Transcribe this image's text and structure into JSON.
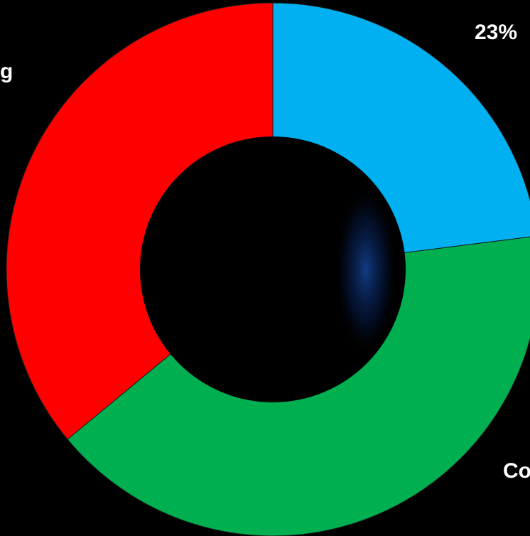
{
  "chart_data": {
    "type": "pie",
    "donut": true,
    "slices": [
      {
        "value": 23,
        "color": "#00b0f0"
      },
      {
        "value": 41,
        "color": "#00b050"
      },
      {
        "value": 36,
        "color": "#ff0000"
      }
    ],
    "data_labels": [
      {
        "text": "23%"
      },
      {
        "text": "g"
      },
      {
        "text": "Co"
      }
    ]
  },
  "background": {
    "description_color": "#000000",
    "accent_color": "#0a3a8a"
  }
}
